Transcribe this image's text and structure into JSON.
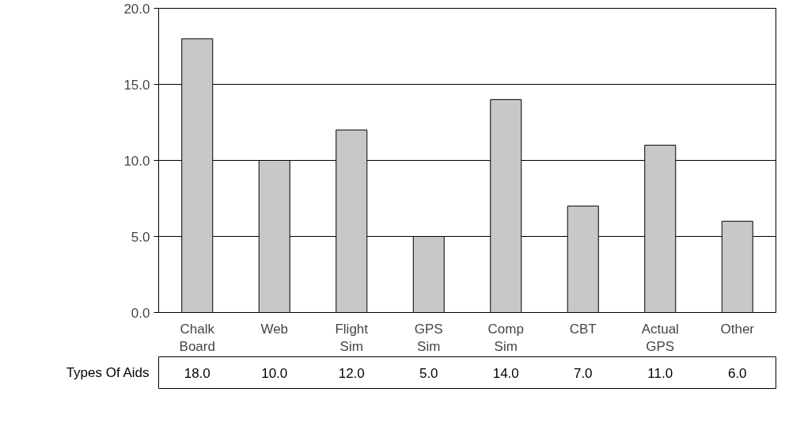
{
  "chart_data": {
    "type": "bar",
    "categories": [
      "Chalk Board",
      "Web",
      "Flight Sim",
      "GPS Sim",
      "Comp Sim",
      "CBT",
      "Actual GPS",
      "Other"
    ],
    "series": [
      {
        "name": "Types Of Aids",
        "color": "#c8c8c8",
        "values": [
          18.0,
          10.0,
          12.0,
          5.0,
          14.0,
          7.0,
          11.0,
          6.0
        ],
        "value_labels": [
          "18.0",
          "10.0",
          "12.0",
          "5.0",
          "14.0",
          "7.0",
          "11.0",
          "6.0"
        ]
      }
    ],
    "ylim": [
      0,
      20
    ],
    "yticks": [
      {
        "value": 0,
        "label": "0.0"
      },
      {
        "value": 5,
        "label": "5.0"
      },
      {
        "value": 10,
        "label": "10.0"
      },
      {
        "value": 15,
        "label": "15.0"
      },
      {
        "value": 20,
        "label": "20.0"
      }
    ],
    "grid": "y"
  }
}
